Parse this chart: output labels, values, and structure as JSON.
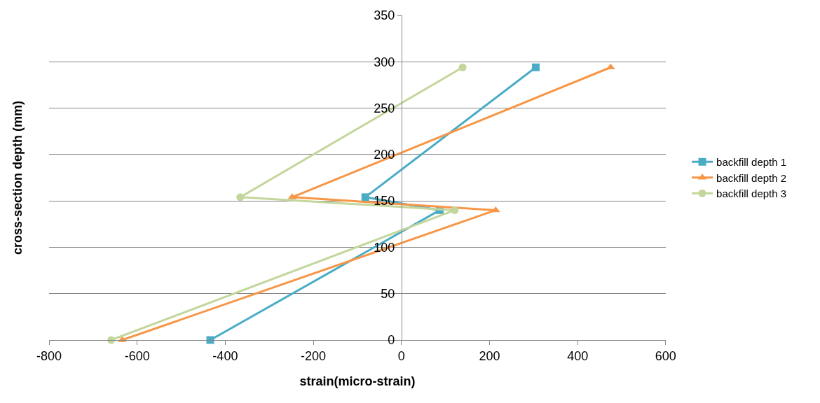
{
  "chart_data": {
    "type": "line",
    "xlabel": "strain(micro-strain)",
    "ylabel": "cross-section depth (mm)",
    "xlim": [
      -800,
      600
    ],
    "xticks": [
      -800,
      -600,
      -400,
      -200,
      0,
      200,
      400,
      600
    ],
    "ylim": [
      0,
      350
    ],
    "yticks": [
      0,
      50,
      100,
      150,
      200,
      250,
      300,
      350
    ],
    "grid": "y",
    "legend": "right",
    "line_style": "solid",
    "series": [
      {
        "name": "backfill depth 1",
        "color": "#4bacc6",
        "marker": "square",
        "x": [
          -434,
          87,
          -82,
          305
        ],
        "values": [
          0,
          140,
          154,
          294
        ]
      },
      {
        "name": "backfill depth 2",
        "color": "#f79646",
        "marker": "triangle",
        "x": [
          -634,
          214,
          -248,
          475
        ],
        "values": [
          0,
          140,
          154,
          294
        ]
      },
      {
        "name": "backfill depth 3",
        "color": "#c3d69b",
        "marker": "circle",
        "x": [
          -659,
          121,
          -366,
          139
        ],
        "values": [
          0,
          140,
          154,
          294
        ]
      }
    ]
  }
}
